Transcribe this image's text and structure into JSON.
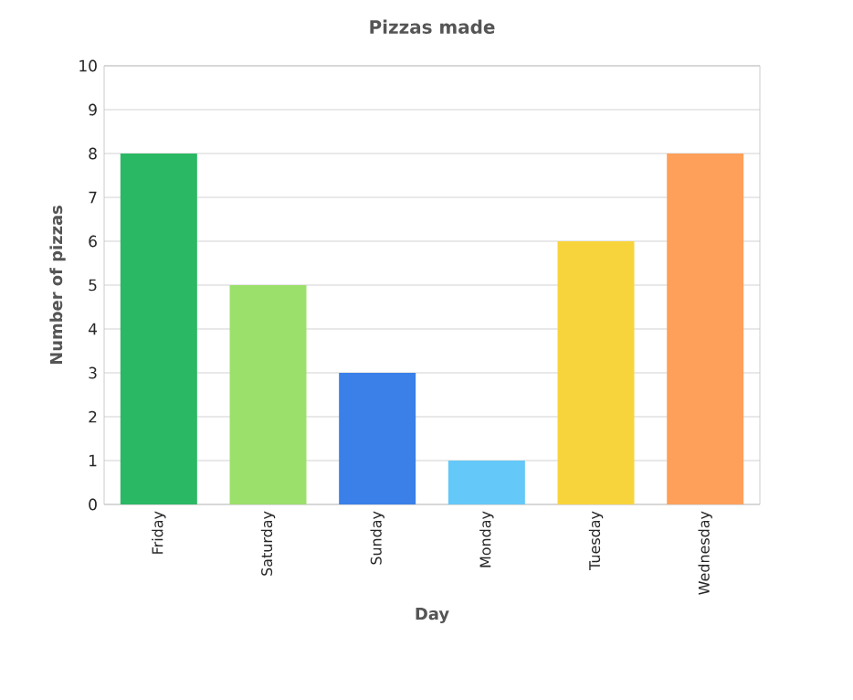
{
  "chart_data": {
    "type": "bar",
    "title": "Pizzas made",
    "xlabel": "Day",
    "ylabel": "Number of pizzas",
    "categories": [
      "Friday",
      "Saturday",
      "Sunday",
      "Monday",
      "Tuesday",
      "Wednesday"
    ],
    "values": [
      8,
      5,
      3,
      1,
      6,
      8
    ],
    "colors": [
      "#2bb865",
      "#9be06a",
      "#3a80e8",
      "#64c8f8",
      "#f8d43c",
      "#ffa05a"
    ],
    "ylim": [
      0,
      10
    ],
    "yticks": [
      0,
      1,
      2,
      3,
      4,
      5,
      6,
      7,
      8,
      9,
      10
    ],
    "grid": "y"
  }
}
